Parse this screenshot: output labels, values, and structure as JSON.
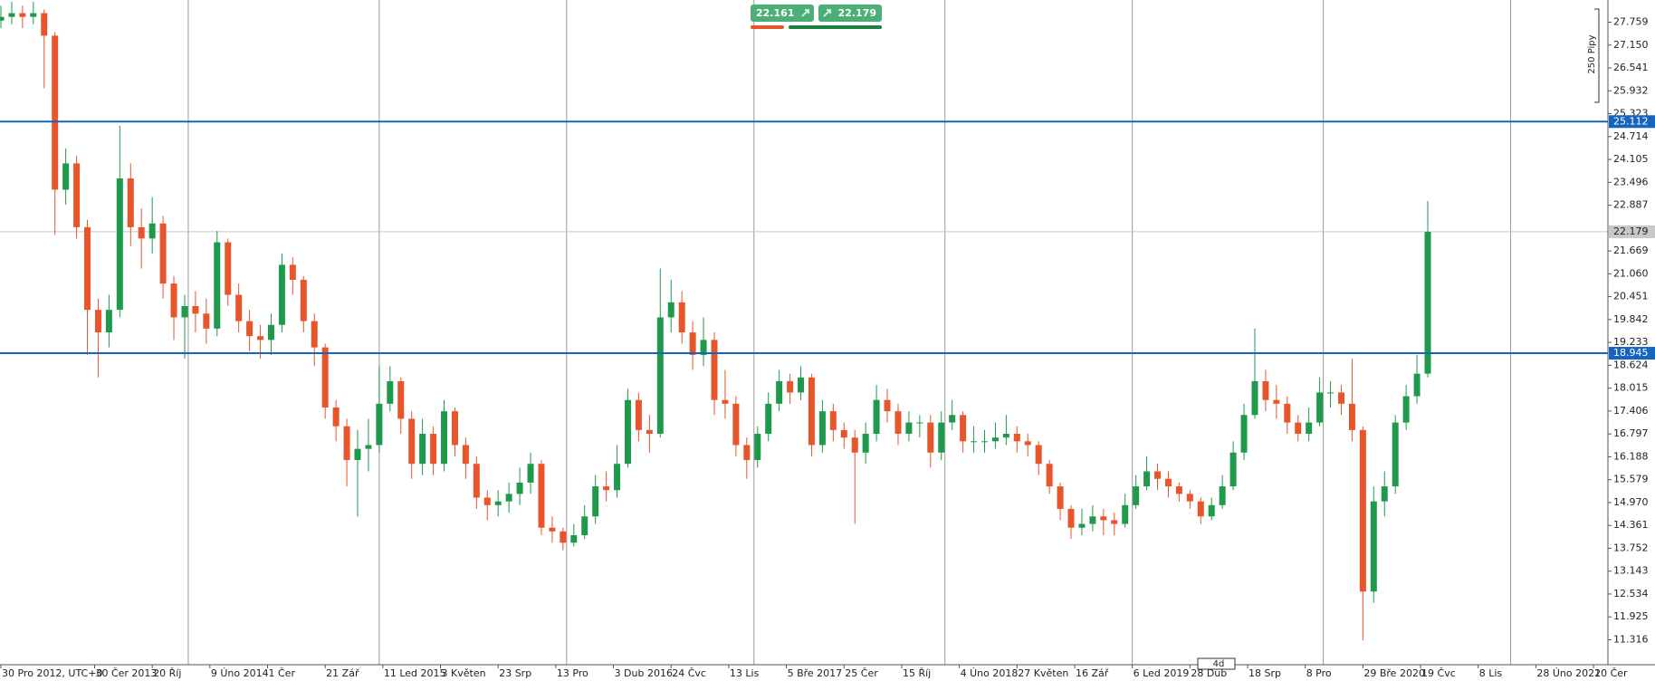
{
  "chart_data": {
    "type": "candlestick",
    "bid": 22.161,
    "ask": 22.179,
    "scale_label": "250 Pipy",
    "timeframe": "4d",
    "up_color": "#1f9a4c",
    "down_color": "#e8552b",
    "level_color": "#1565c0",
    "levels": [
      25.112,
      18.945
    ],
    "current_price": 22.179,
    "ylim": [
      10.7,
      28.35
    ],
    "xlim": [
      0,
      446
    ],
    "yticks": [
      27.759,
      {
        "value": 27.15,
        "label": "27.150"
      },
      26.541,
      25.932,
      25.323,
      24.714,
      24.105,
      23.496,
      22.887,
      21.669,
      {
        "value": 21.06,
        "label": "21.060"
      },
      20.451,
      19.842,
      19.233,
      18.624,
      18.015,
      17.406,
      16.797,
      16.188,
      15.579,
      {
        "value": 14.97,
        "label": "14.970"
      },
      14.361,
      13.752,
      13.143,
      12.534,
      11.925,
      11.316
    ],
    "xticks": [
      {
        "value": 0,
        "label": "30 Pro 2012, UTC+0"
      },
      {
        "value": 26,
        "label": "30 Čer 2013"
      },
      {
        "value": 42,
        "label": "20 Říj"
      },
      {
        "value": 58,
        "label": "9 Úno 2014"
      },
      {
        "value": 74,
        "label": "1 Čer"
      },
      {
        "value": 90,
        "label": "21 Zář"
      },
      {
        "value": 106,
        "label": "11 Led 2015"
      },
      {
        "value": 122,
        "label": "3 Květen"
      },
      {
        "value": 138,
        "label": "23 Srp"
      },
      {
        "value": 154,
        "label": "13 Pro"
      },
      {
        "value": 170,
        "label": "3 Dub 2016"
      },
      {
        "value": 186,
        "label": "24 Čvc"
      },
      {
        "value": 202,
        "label": "13 Lis"
      },
      {
        "value": 218,
        "label": "5 Bře 2017"
      },
      {
        "value": 234,
        "label": "25 Čer"
      },
      {
        "value": 250,
        "label": "15 Říj"
      },
      {
        "value": 266,
        "label": "4 Úno 2018"
      },
      {
        "value": 282,
        "label": "27 Květen"
      },
      {
        "value": 298,
        "label": "16 Zář"
      },
      {
        "value": 314,
        "label": "6 Led 2019"
      },
      {
        "value": 330,
        "label": "28 Dub"
      },
      {
        "value": 346,
        "label": "18 Srp"
      },
      {
        "value": 362,
        "label": "8 Pro"
      },
      {
        "value": 378,
        "label": "29 Bře 2020"
      },
      {
        "value": 394,
        "label": "19 Čvc"
      },
      {
        "value": 410,
        "label": "8 Lis"
      },
      {
        "value": 426,
        "label": "28 Úno 2021"
      },
      {
        "value": 442,
        "label": "20 Čer"
      }
    ],
    "vgrid": [
      52,
      105,
      157,
      209,
      262,
      314,
      367,
      419
    ],
    "x": [
      0,
      3,
      6,
      9,
      12,
      15,
      18,
      21,
      24,
      27,
      30,
      33,
      36,
      39,
      42,
      45,
      48,
      51,
      54,
      57,
      60,
      63,
      66,
      69,
      72,
      75,
      78,
      81,
      84,
      87,
      90,
      93,
      96,
      99,
      102,
      105,
      108,
      111,
      114,
      117,
      120,
      123,
      126,
      129,
      132,
      135,
      138,
      141,
      144,
      147,
      150,
      153,
      156,
      159,
      162,
      165,
      168,
      171,
      174,
      177,
      180,
      183,
      186,
      189,
      192,
      195,
      198,
      201,
      204,
      207,
      210,
      213,
      216,
      219,
      222,
      225,
      228,
      231,
      234,
      237,
      240,
      243,
      246,
      249,
      252,
      255,
      258,
      261,
      264,
      267,
      270,
      273,
      276,
      279,
      282,
      285,
      288,
      291,
      294,
      297,
      300,
      303,
      306,
      309,
      312,
      315,
      318,
      321,
      324,
      327,
      330,
      333,
      336,
      339,
      342,
      345,
      348,
      351,
      354,
      357,
      360,
      363,
      366,
      369,
      372,
      375,
      378,
      381,
      384,
      387,
      390,
      393,
      396
    ],
    "open": [
      27.8,
      27.9,
      28.0,
      27.9,
      28.0,
      27.4,
      23.3,
      24.0,
      22.3,
      20.1,
      19.5,
      20.1,
      23.6,
      22.3,
      22.0,
      22.4,
      20.8,
      19.9,
      20.2,
      20.0,
      19.6,
      21.9,
      20.5,
      19.8,
      19.4,
      19.3,
      19.7,
      21.3,
      20.9,
      19.8,
      19.1,
      17.5,
      17.0,
      16.1,
      16.4,
      16.5,
      17.6,
      18.2,
      17.2,
      16.0,
      16.8,
      16.0,
      17.4,
      16.5,
      16.0,
      15.1,
      14.9,
      15.0,
      15.2,
      15.5,
      16.0,
      14.3,
      14.2,
      13.9,
      14.1,
      14.6,
      15.4,
      15.3,
      16.0,
      17.7,
      16.9,
      16.8,
      19.9,
      20.3,
      19.5,
      18.9,
      19.3,
      17.7,
      17.6,
      16.5,
      16.1,
      16.8,
      17.6,
      18.2,
      17.9,
      18.3,
      16.5,
      17.4,
      16.9,
      16.7,
      16.3,
      16.8,
      17.7,
      17.4,
      16.8,
      17.1,
      17.1,
      16.3,
      17.1,
      17.3,
      16.6,
      16.6,
      16.6,
      16.7,
      16.8,
      16.6,
      16.5,
      16.0,
      15.4,
      14.8,
      14.3,
      14.4,
      14.6,
      14.5,
      14.4,
      14.9,
      15.4,
      15.8,
      15.6,
      15.4,
      15.2,
      15.0,
      14.6,
      14.9,
      15.4,
      16.3,
      17.3,
      18.2,
      17.7,
      17.6,
      17.1,
      16.8,
      17.1,
      17.9,
      17.9,
      17.6,
      16.9,
      12.6,
      15.0,
      15.4,
      17.1,
      17.8,
      18.4
    ],
    "high": [
      28.2,
      28.3,
      28.2,
      28.3,
      28.1,
      27.5,
      24.4,
      24.2,
      22.5,
      20.4,
      20.5,
      25.0,
      24.0,
      22.8,
      23.1,
      22.6,
      21.0,
      20.5,
      20.6,
      20.4,
      22.2,
      22.0,
      20.8,
      20.1,
      19.7,
      20.0,
      21.6,
      21.5,
      21.0,
      20.0,
      19.2,
      17.7,
      17.2,
      16.9,
      17.2,
      18.6,
      18.6,
      18.3,
      17.4,
      17.2,
      17.0,
      17.7,
      17.5,
      16.7,
      16.2,
      15.3,
      15.3,
      15.5,
      15.9,
      16.3,
      16.1,
      14.6,
      14.3,
      14.4,
      14.9,
      15.7,
      15.8,
      16.5,
      18.0,
      17.9,
      17.3,
      21.2,
      20.9,
      20.6,
      19.8,
      19.9,
      19.5,
      18.5,
      17.8,
      16.7,
      17.0,
      17.9,
      18.5,
      18.4,
      18.6,
      18.4,
      17.7,
      17.6,
      17.1,
      16.9,
      17.1,
      18.1,
      18.0,
      17.6,
      17.4,
      17.3,
      17.3,
      17.4,
      17.7,
      17.4,
      17.0,
      16.9,
      17.1,
      17.3,
      17.0,
      16.8,
      16.6,
      16.1,
      15.5,
      14.9,
      14.8,
      14.9,
      14.8,
      14.7,
      15.2,
      15.7,
      16.2,
      16.0,
      15.8,
      15.5,
      15.3,
      15.1,
      15.1,
      15.7,
      16.6,
      17.6,
      19.6,
      18.5,
      18.1,
      17.8,
      17.3,
      17.5,
      18.3,
      18.2,
      18.1,
      18.8,
      17.0,
      15.4,
      15.8,
      17.3,
      18.1,
      18.9,
      23.0
    ],
    "low": [
      27.6,
      27.7,
      27.6,
      27.7,
      26.0,
      22.1,
      22.9,
      22.0,
      18.9,
      18.3,
      19.1,
      19.9,
      21.8,
      21.2,
      21.6,
      20.4,
      19.3,
      18.8,
      19.5,
      19.2,
      19.4,
      20.2,
      19.5,
      19.0,
      18.8,
      18.9,
      19.5,
      20.5,
      19.5,
      18.6,
      17.2,
      16.6,
      15.4,
      14.6,
      15.8,
      16.3,
      17.4,
      16.8,
      15.6,
      15.7,
      15.7,
      15.8,
      16.2,
      15.6,
      14.8,
      14.5,
      14.6,
      14.7,
      14.9,
      15.2,
      14.1,
      13.9,
      13.7,
      13.8,
      14.0,
      14.4,
      15.0,
      15.1,
      15.9,
      16.6,
      16.3,
      16.7,
      19.5,
      19.2,
      18.5,
      18.6,
      17.3,
      17.2,
      16.2,
      15.6,
      15.9,
      16.6,
      17.4,
      17.6,
      17.7,
      16.2,
      16.3,
      16.6,
      16.4,
      14.4,
      16.0,
      16.6,
      17.1,
      16.5,
      16.6,
      16.7,
      15.9,
      16.1,
      16.9,
      16.3,
      16.3,
      16.3,
      16.4,
      16.5,
      16.3,
      16.2,
      15.7,
      15.2,
      14.5,
      14.0,
      14.1,
      14.2,
      14.1,
      14.1,
      14.3,
      14.8,
      15.3,
      15.3,
      15.1,
      15.0,
      14.8,
      14.4,
      14.5,
      14.8,
      15.3,
      16.1,
      17.2,
      17.4,
      17.2,
      16.8,
      16.6,
      16.6,
      17.0,
      17.5,
      17.3,
      16.6,
      11.3,
      12.3,
      14.6,
      15.2,
      16.9,
      17.6,
      18.3
    ],
    "close": [
      27.9,
      28.0,
      27.9,
      28.0,
      27.4,
      23.3,
      24.0,
      22.3,
      20.1,
      19.5,
      20.1,
      23.6,
      22.3,
      22.0,
      22.4,
      20.8,
      19.9,
      20.2,
      20.0,
      19.6,
      21.9,
      20.5,
      19.8,
      19.4,
      19.3,
      19.7,
      21.3,
      20.9,
      19.8,
      19.1,
      17.5,
      17.0,
      16.1,
      16.4,
      16.5,
      17.6,
      18.2,
      17.2,
      16.0,
      16.8,
      16.0,
      17.4,
      16.5,
      16.0,
      15.1,
      14.9,
      15.0,
      15.2,
      15.5,
      16.0,
      14.3,
      14.2,
      13.9,
      14.1,
      14.6,
      15.4,
      15.3,
      16.0,
      17.7,
      16.9,
      16.8,
      19.9,
      20.3,
      19.5,
      18.9,
      19.3,
      17.7,
      17.6,
      16.5,
      16.1,
      16.8,
      17.6,
      18.2,
      17.9,
      18.3,
      16.5,
      17.4,
      16.9,
      16.7,
      16.3,
      16.8,
      17.7,
      17.4,
      16.8,
      17.1,
      17.1,
      16.3,
      17.1,
      17.3,
      16.6,
      16.6,
      16.6,
      16.7,
      16.8,
      16.6,
      16.5,
      16.0,
      15.4,
      14.8,
      14.3,
      14.4,
      14.6,
      14.5,
      14.4,
      14.9,
      15.4,
      15.8,
      15.6,
      15.4,
      15.2,
      15.0,
      14.6,
      14.9,
      15.4,
      16.3,
      17.3,
      18.2,
      17.7,
      17.6,
      17.1,
      16.8,
      17.1,
      17.9,
      17.9,
      17.6,
      16.9,
      12.6,
      15.0,
      15.4,
      17.1,
      17.8,
      18.4,
      22.179
    ]
  }
}
